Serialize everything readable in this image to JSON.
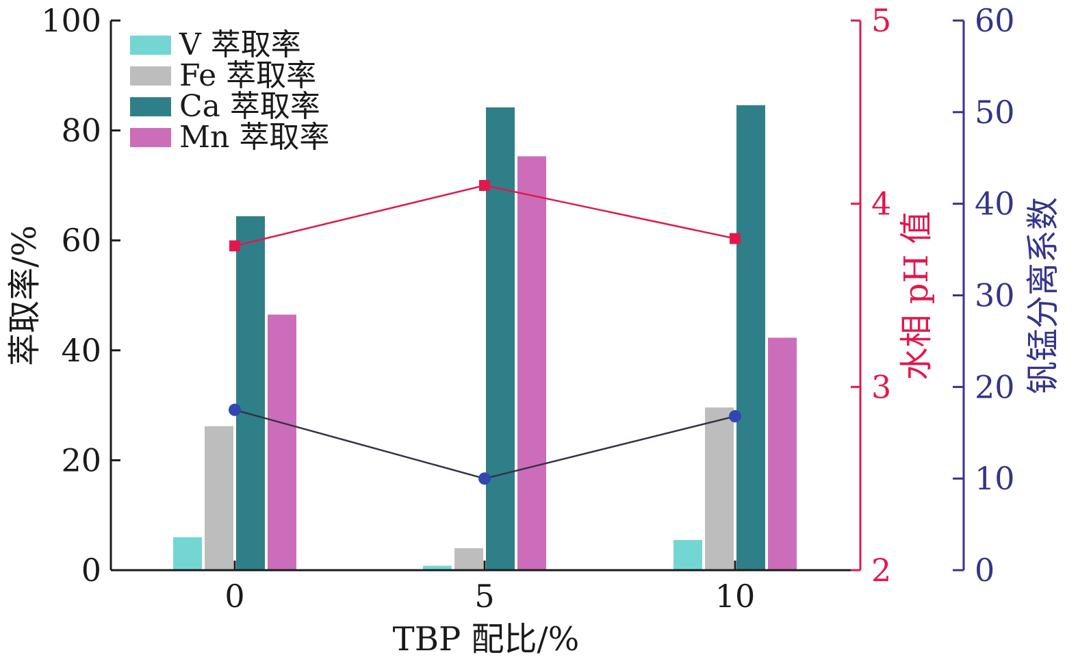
{
  "chart_data": {
    "type": "bar",
    "xlabel": "TBP 配比/%",
    "categories": [
      "0",
      "5",
      "10"
    ],
    "y_left": {
      "label": "萃取率/%",
      "ylim": [
        0,
        100
      ],
      "ticks": [
        0,
        20,
        40,
        60,
        80,
        100
      ],
      "color": "#1a1a1a"
    },
    "y_right_ph": {
      "label": "水相 pH 值",
      "ylim": [
        2,
        5
      ],
      "ticks": [
        2,
        3,
        4,
        5
      ],
      "color": "#e0194c"
    },
    "y_right_sep": {
      "label": "钒锰分离系数",
      "ylim": [
        0,
        60
      ],
      "ticks": [
        0,
        10,
        20,
        30,
        40,
        50,
        60
      ],
      "color": "#34348a"
    },
    "series": [
      {
        "name": "V 萃取率",
        "kind": "bar",
        "color": "#74d6d2",
        "values": [
          6.0,
          0.8,
          5.5
        ]
      },
      {
        "name": "Fe 萃取率",
        "kind": "bar",
        "color": "#bdbdbd",
        "values": [
          26.2,
          4.0,
          29.6
        ]
      },
      {
        "name": "Ca 萃取率",
        "kind": "bar",
        "color": "#2e7f88",
        "values": [
          64.4,
          84.2,
          84.6
        ]
      },
      {
        "name": "Mn 萃取率",
        "kind": "bar",
        "color": "#cc6db9",
        "values": [
          46.5,
          75.3,
          42.3
        ]
      },
      {
        "kind": "line",
        "axis": "ph",
        "marker": "square",
        "color": "#e0194c",
        "values": [
          3.77,
          4.1,
          3.81
        ]
      },
      {
        "kind": "line",
        "axis": "sep",
        "marker": "circle",
        "color": "#3048b0",
        "values": [
          17.5,
          10.0,
          16.8
        ]
      }
    ],
    "legend": {
      "position": "top-left",
      "entries": [
        "V 萃取率",
        "Fe 萃取率",
        "Ca 萃取率",
        "Mn 萃取率"
      ]
    },
    "grid": false
  }
}
